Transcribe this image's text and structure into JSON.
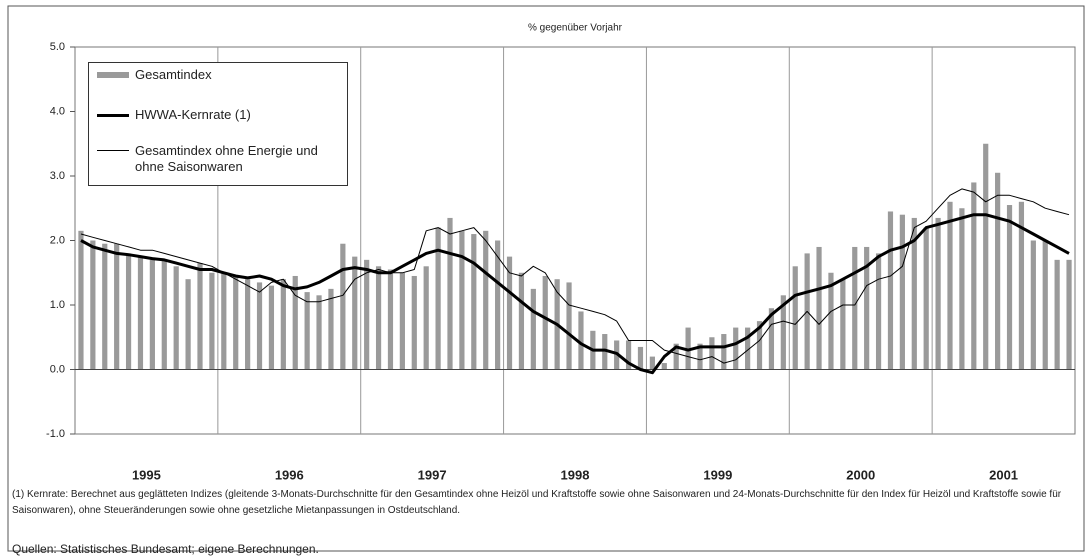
{
  "chart_data": {
    "type": "bar_line",
    "subtitle": "% gegenüber Vorjahr",
    "year_labels": [
      "1995",
      "1996",
      "1997",
      "1998",
      "1999",
      "2000",
      "2001"
    ],
    "categories": [
      null,
      null,
      null,
      null,
      null,
      null,
      null,
      null,
      null,
      null,
      null,
      null,
      null,
      null,
      null,
      null,
      null,
      null,
      null,
      null,
      null,
      null,
      null,
      null,
      null,
      null,
      null,
      null,
      null,
      null,
      null,
      null,
      null,
      null,
      null,
      null,
      null,
      null,
      null,
      null,
      null,
      null,
      null,
      null,
      null,
      null,
      null,
      null,
      null,
      null,
      null,
      null,
      null,
      null,
      null,
      null,
      null,
      null,
      null,
      null,
      null,
      null,
      null,
      null,
      null,
      null,
      null,
      null,
      null,
      null,
      null,
      null,
      null,
      null,
      null,
      null,
      null,
      null,
      null,
      null,
      null,
      null,
      null,
      null
    ],
    "ylim": [
      -1.0,
      5.0
    ],
    "yticks": [
      {
        "value": 5,
        "label": "5.0"
      },
      {
        "value": 4,
        "label": "4.0"
      },
      {
        "value": 3,
        "label": "3.0"
      },
      {
        "value": 2,
        "label": "2.0"
      },
      {
        "value": 1,
        "label": "1.0"
      },
      {
        "value": 0,
        "label": "0.0"
      },
      {
        "value": -1,
        "label": "-1.0"
      }
    ],
    "series": [
      {
        "name": "Gesamtindex",
        "kind": "bar",
        "color": "#9a9a9a",
        "values": [
          2.15,
          2.0,
          1.95,
          1.95,
          1.8,
          1.75,
          1.7,
          1.7,
          1.6,
          1.4,
          1.65,
          1.5,
          1.5,
          1.45,
          1.4,
          1.35,
          1.3,
          1.4,
          1.45,
          1.2,
          1.15,
          1.25,
          1.95,
          1.75,
          1.7,
          1.6,
          1.55,
          1.5,
          1.45,
          1.6,
          2.2,
          2.35,
          2.15,
          2.1,
          2.15,
          2.0,
          1.75,
          1.5,
          1.25,
          1.45,
          1.4,
          1.35,
          0.9,
          0.6,
          0.55,
          0.45,
          0.45,
          0.35,
          0.2,
          0.1,
          0.4,
          0.65,
          0.4,
          0.5,
          0.55,
          0.65,
          0.65,
          0.75,
          0.95,
          1.15,
          1.6,
          1.8,
          1.9,
          1.5,
          1.4,
          1.9,
          1.9,
          1.8,
          2.45,
          2.4,
          2.35,
          2.2,
          2.35,
          2.6,
          2.5,
          2.9,
          3.5,
          3.05,
          2.55,
          2.6,
          2.0,
          2.0,
          1.7,
          1.7
        ]
      },
      {
        "name": "HWWA-Kernrate (1)",
        "kind": "line",
        "color": "#000000",
        "width": 3,
        "values": [
          2.0,
          1.9,
          1.85,
          1.8,
          1.78,
          1.75,
          1.72,
          1.7,
          1.65,
          1.6,
          1.55,
          1.55,
          1.5,
          1.45,
          1.42,
          1.45,
          1.4,
          1.3,
          1.25,
          1.28,
          1.35,
          1.45,
          1.55,
          1.58,
          1.55,
          1.5,
          1.5,
          1.6,
          1.7,
          1.8,
          1.85,
          1.8,
          1.75,
          1.65,
          1.5,
          1.35,
          1.2,
          1.05,
          0.9,
          0.8,
          0.7,
          0.55,
          0.4,
          0.3,
          0.3,
          0.25,
          0.1,
          0.0,
          -0.05,
          0.2,
          0.35,
          0.3,
          0.35,
          0.35,
          0.35,
          0.4,
          0.5,
          0.65,
          0.85,
          1.0,
          1.15,
          1.2,
          1.25,
          1.3,
          1.4,
          1.5,
          1.6,
          1.75,
          1.85,
          1.9,
          2.0,
          2.2,
          2.25,
          2.3,
          2.35,
          2.4,
          2.4,
          2.35,
          2.3,
          2.2,
          2.1,
          2.0,
          1.9,
          1.8
        ]
      },
      {
        "name": "Gesamtindex ohne Energie und ohne Saisonwaren",
        "kind": "line",
        "color": "#000000",
        "width": 1,
        "values": [
          2.1,
          2.05,
          2.0,
          1.95,
          1.9,
          1.85,
          1.85,
          1.8,
          1.75,
          1.7,
          1.65,
          1.6,
          1.5,
          1.4,
          1.3,
          1.2,
          1.35,
          1.4,
          1.15,
          1.05,
          1.05,
          1.1,
          1.15,
          1.4,
          1.5,
          1.55,
          1.5,
          1.5,
          1.55,
          2.15,
          2.2,
          2.1,
          2.15,
          2.2,
          2.0,
          1.75,
          1.5,
          1.45,
          1.6,
          1.5,
          1.2,
          1.0,
          0.95,
          0.9,
          0.85,
          0.75,
          0.45,
          0.45,
          0.45,
          0.3,
          0.25,
          0.2,
          0.15,
          0.2,
          0.1,
          0.15,
          0.3,
          0.45,
          0.7,
          0.75,
          0.7,
          0.9,
          0.7,
          0.9,
          1.0,
          1.0,
          1.3,
          1.4,
          1.45,
          1.6,
          2.2,
          2.3,
          2.5,
          2.7,
          2.8,
          2.75,
          2.6,
          2.7,
          2.7,
          2.65,
          2.6,
          2.5,
          2.45,
          2.4
        ]
      }
    ],
    "footnote": "(1) Kernrate: Berechnet aus geglätteten Indizes (gleitende 3-Monats-Durchschnitte für den Gesamtindex ohne Heizöl und Kraftstoffe sowie ohne Saisonwaren und 24-Monats-Durchschnitte für den Index für Heizöl und Kraftstoffe sowie für Saisonwaren), ohne Steueränderungen sowie ohne gesetzliche Mietanpassungen in Ostdeutschland.",
    "source": "Quellen: Statistisches Bundesamt; eigene Berechnungen."
  }
}
